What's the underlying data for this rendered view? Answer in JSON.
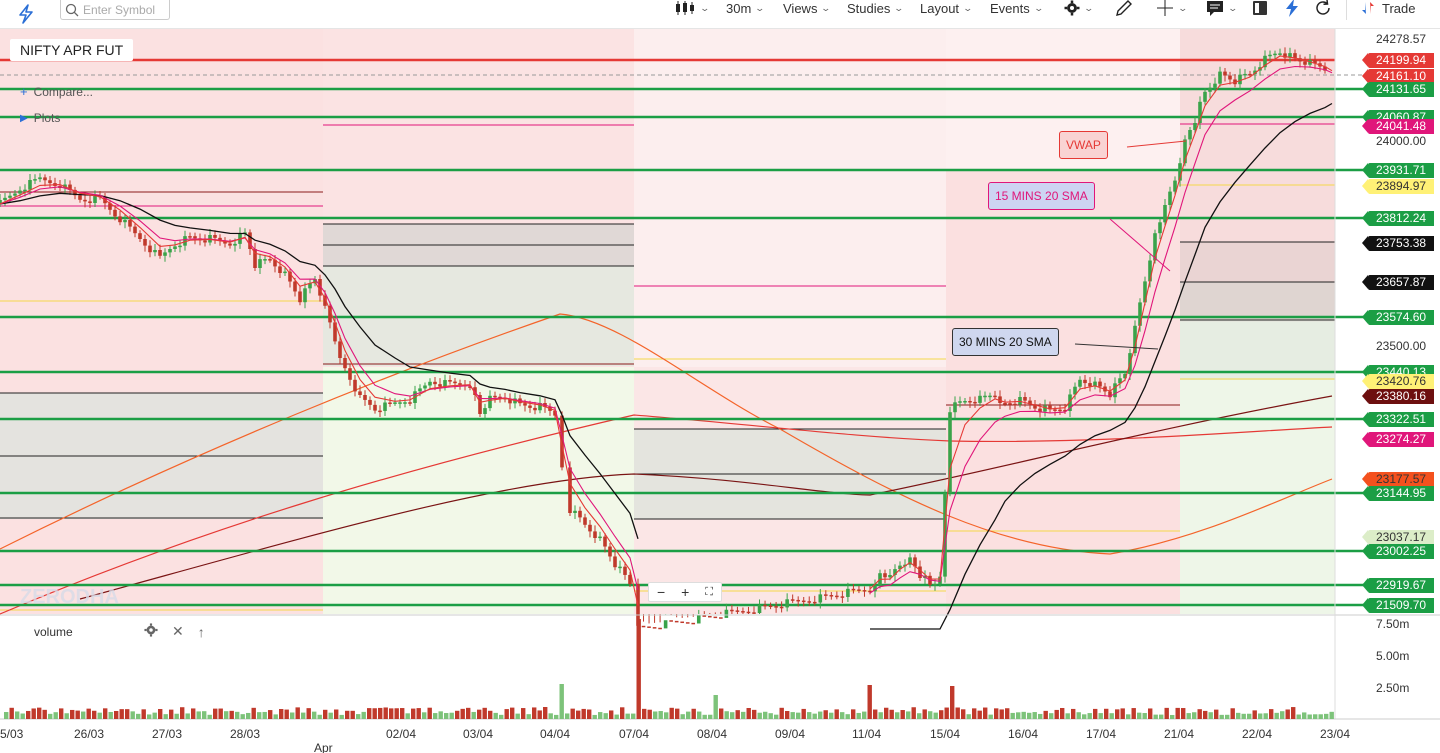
{
  "toolbar": {
    "search_placeholder": "Enter Symbol",
    "interval": "30m",
    "views": "Views",
    "studies": "Studies",
    "layout": "Layout",
    "events": "Events",
    "trade": "Trade",
    "accent_color": "#2b6fd6"
  },
  "legend": {
    "instrument": "NIFTY APR FUT",
    "compare": "Compare...",
    "plots": "Plots"
  },
  "volume_legend": {
    "label": "volume"
  },
  "price_labels": [
    {
      "value": "24278.57",
      "bg": "",
      "fg": "#333333"
    },
    {
      "value": "24199.94",
      "bg": "#e53935",
      "fg": "#ffffff"
    },
    {
      "value": "24161.10",
      "bg": "#e53935",
      "fg": "#ffffff"
    },
    {
      "value": "24131.65",
      "bg": "#1b9e45",
      "fg": "#ffffff"
    },
    {
      "value": "24060.87",
      "bg": "#1b9e45",
      "fg": "#ffffff"
    },
    {
      "value": "24041.48",
      "bg": "#e0167a",
      "fg": "#ffffff"
    },
    {
      "value": "24000.00",
      "bg": "",
      "fg": "#333333"
    },
    {
      "value": "23931.71",
      "bg": "#1b9e45",
      "fg": "#ffffff"
    },
    {
      "value": "23894.97",
      "bg": "#fff176",
      "fg": "#333333"
    },
    {
      "value": "23812.24",
      "bg": "#1b9e45",
      "fg": "#ffffff"
    },
    {
      "value": "23753.38",
      "bg": "#111111",
      "fg": "#ffffff"
    },
    {
      "value": "23657.87",
      "bg": "#111111",
      "fg": "#ffffff"
    },
    {
      "value": "23574.60",
      "bg": "#1b9e45",
      "fg": "#ffffff"
    },
    {
      "value": "23500.00",
      "bg": "",
      "fg": "#333333"
    },
    {
      "value": "23440.13",
      "bg": "#1b9e45",
      "fg": "#ffffff"
    },
    {
      "value": "23420.76",
      "bg": "#fff176",
      "fg": "#333333"
    },
    {
      "value": "23380.16",
      "bg": "#6d0f0f",
      "fg": "#ffffff"
    },
    {
      "value": "23322.51",
      "bg": "#1b9e45",
      "fg": "#ffffff"
    },
    {
      "value": "23274.27",
      "bg": "#e0167a",
      "fg": "#ffffff"
    },
    {
      "value": "23177.57",
      "bg": "#f4511e",
      "fg": "#333333"
    },
    {
      "value": "23144.95",
      "bg": "#1b9e45",
      "fg": "#ffffff"
    },
    {
      "value": "23037.17",
      "bg": "#dcedc8",
      "fg": "#333333"
    },
    {
      "value": "23002.25",
      "bg": "#1b9e45",
      "fg": "#ffffff"
    },
    {
      "value": "22919.67",
      "bg": "#1b9e45",
      "fg": "#ffffff"
    },
    {
      "value": "21509.70",
      "bg": "#1b9e45",
      "fg": "#ffffff"
    }
  ],
  "volume_axis": [
    "7.50m",
    "5.00m",
    "2.50m"
  ],
  "dates": [
    "5/03",
    "26/03",
    "27/03",
    "28/03",
    "02/04",
    "03/04",
    "04/04",
    "07/04",
    "08/04",
    "09/04",
    "11/04",
    "15/04",
    "16/04",
    "17/04",
    "21/04",
    "22/04",
    "23/04"
  ],
  "month_label": "Apr",
  "callouts": {
    "vwap": "VWAP",
    "sma15": "15 MINS 20 SMA",
    "sma30": "30 MINS 20 SMA"
  },
  "chart_data": {
    "type": "candlestick",
    "instrument": "NIFTY APR FUT",
    "interval": "30m",
    "y_range": [
      22850,
      24320
    ],
    "horizontal_levels": [
      24199.94,
      24131.65,
      24060.87,
      23931.71,
      23812.24,
      23574.6,
      23440.13,
      23322.51,
      23144.95,
      23002.25,
      22919.67
    ],
    "close_path": [
      [
        "5/03",
        23860
      ],
      [
        "26/03",
        23850
      ],
      [
        "27/03",
        23700
      ],
      [
        "28/03",
        23620
      ],
      [
        "02/04",
        23360
      ],
      [
        "03/04",
        23320
      ],
      [
        "04/04",
        23050
      ],
      [
        "07/04",
        22800
      ],
      [
        "11/04",
        22920
      ],
      [
        "15/04",
        23330
      ],
      [
        "16/04",
        23320
      ],
      [
        "17/04",
        23460
      ],
      [
        "21/04",
        24060
      ],
      [
        "22/04",
        24250
      ],
      [
        "23/04",
        24161
      ]
    ],
    "volume_axis_max": "7.50m"
  }
}
